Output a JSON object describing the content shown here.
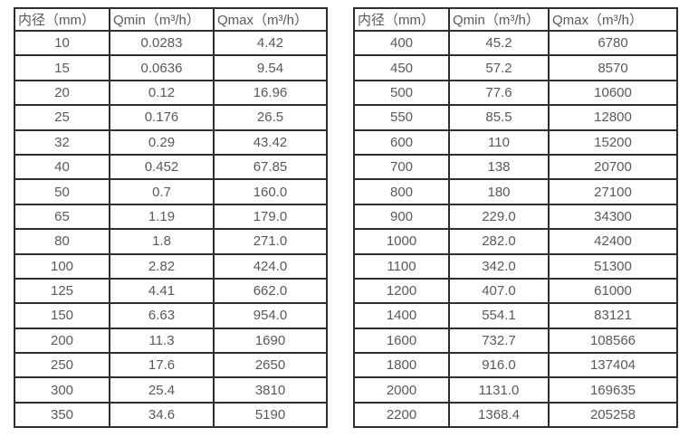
{
  "page": {
    "background": "#ffffff"
  },
  "colors": {
    "border": "#2e2e2e",
    "text": "#595959"
  },
  "tables": [
    {
      "name": "flow-table-left",
      "headers": [
        "内径（mm）",
        "Qmin（m³/h）",
        "Qmax（m³/h）"
      ],
      "rows": [
        [
          "10",
          "0.0283",
          "4.42"
        ],
        [
          "15",
          "0.0636",
          "9.54"
        ],
        [
          "20",
          "0.12",
          "16.96"
        ],
        [
          "25",
          "0.176",
          "26.5"
        ],
        [
          "32",
          "0.29",
          "43.42"
        ],
        [
          "40",
          "0.452",
          "67.85"
        ],
        [
          "50",
          "0.7",
          "160.0"
        ],
        [
          "65",
          "1.19",
          "179.0"
        ],
        [
          "80",
          "1.8",
          "271.0"
        ],
        [
          "100",
          "2.82",
          "424.0"
        ],
        [
          "125",
          "4.41",
          "662.0"
        ],
        [
          "150",
          "6.63",
          "954.0"
        ],
        [
          "200",
          "11.3",
          "1690"
        ],
        [
          "250",
          "17.6",
          "2650"
        ],
        [
          "300",
          "25.4",
          "3810"
        ],
        [
          "350",
          "34.6",
          "5190"
        ]
      ]
    },
    {
      "name": "flow-table-right",
      "headers": [
        "内径（mm）",
        "Qmin（m³/h）",
        "Qmax（m³/h）"
      ],
      "rows": [
        [
          "400",
          "45.2",
          "6780"
        ],
        [
          "450",
          "57.2",
          "8570"
        ],
        [
          "500",
          "77.6",
          "10600"
        ],
        [
          "550",
          "85.5",
          "12800"
        ],
        [
          "600",
          "110",
          "15200"
        ],
        [
          "700",
          "138",
          "20700"
        ],
        [
          "800",
          "180",
          "27100"
        ],
        [
          "900",
          "229.0",
          "34300"
        ],
        [
          "1000",
          "282.0",
          "42400"
        ],
        [
          "1100",
          "342.0",
          "51300"
        ],
        [
          "1200",
          "407.0",
          "61000"
        ],
        [
          "1400",
          "554.1",
          "83121"
        ],
        [
          "1600",
          "732.7",
          "108566"
        ],
        [
          "1800",
          "916.0",
          "137404"
        ],
        [
          "2000",
          "1131.0",
          "169635"
        ],
        [
          "2200",
          "1368.4",
          "205258"
        ]
      ]
    }
  ]
}
